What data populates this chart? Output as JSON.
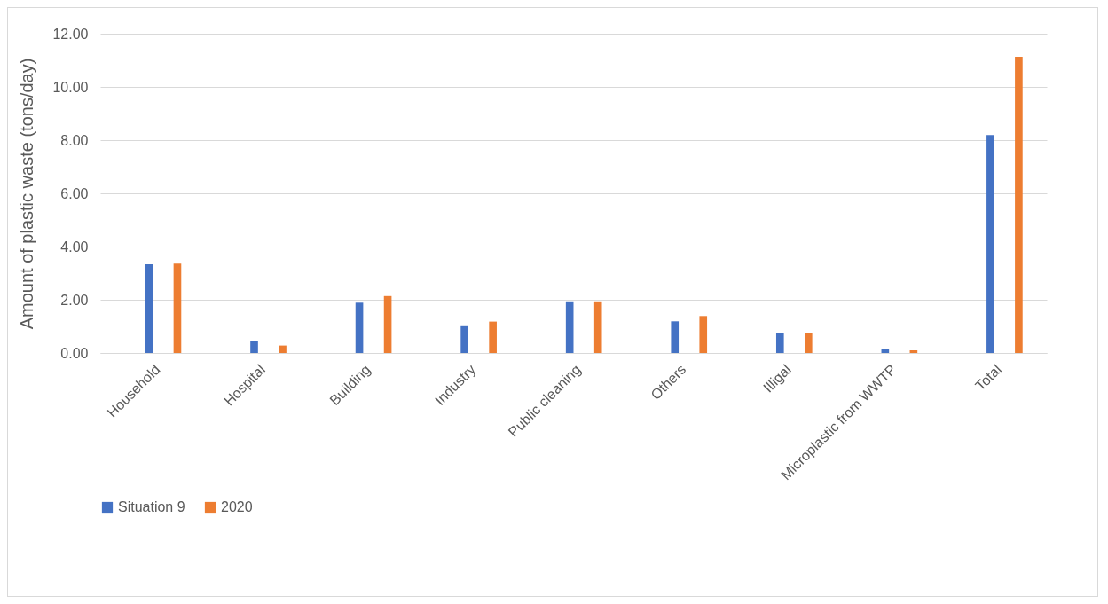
{
  "chart_data": {
    "type": "bar",
    "ylabel": "Amount of plastic waste (tons/day)",
    "categories": [
      "Household",
      "Hospital",
      "Building",
      "Industry",
      "Public cleaning",
      "Others",
      "Illigal",
      "Microplastic from WWTP",
      "Total"
    ],
    "series": [
      {
        "name": "Situation 9",
        "color": "#4472c4",
        "values": [
          3.33,
          0.45,
          1.89,
          1.04,
          1.94,
          1.19,
          0.75,
          0.14,
          8.19
        ]
      },
      {
        "name": "2020",
        "color": "#ed7d31",
        "values": [
          3.36,
          0.28,
          2.14,
          1.18,
          1.94,
          1.39,
          0.75,
          0.1,
          11.13
        ]
      }
    ],
    "ylim": [
      0,
      12
    ],
    "yticks": [
      {
        "value": 0,
        "label": "0.00"
      },
      {
        "value": 2,
        "label": "2.00"
      },
      {
        "value": 4,
        "label": "4.00"
      },
      {
        "value": 6,
        "label": "6.00"
      },
      {
        "value": 8,
        "label": "8.00"
      },
      {
        "value": 10,
        "label": "10.00"
      },
      {
        "value": 12,
        "label": "12.00"
      }
    ],
    "grid": "y",
    "legend": "bottom"
  }
}
